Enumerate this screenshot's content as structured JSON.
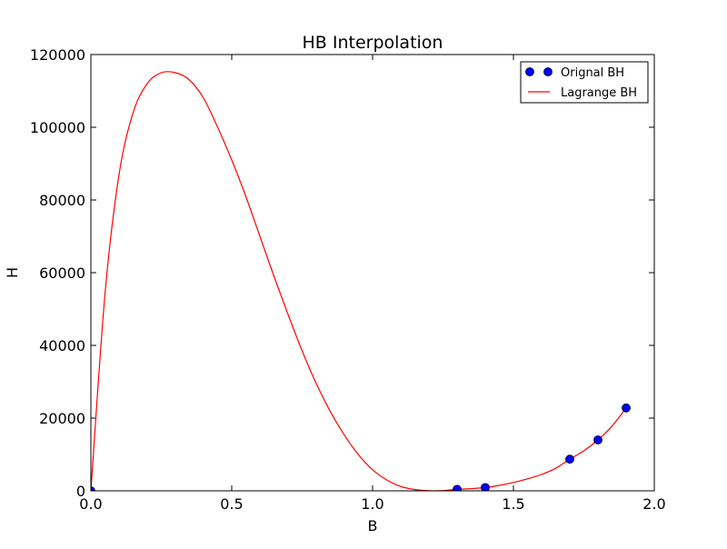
{
  "chart_data": {
    "type": "line",
    "title": "HB Interpolation",
    "xlabel": "B",
    "ylabel": "H",
    "xlim": [
      0.0,
      2.0
    ],
    "ylim": [
      0,
      120000
    ],
    "xticks": [
      0.0,
      0.5,
      1.0,
      1.5,
      2.0
    ],
    "xtick_labels": [
      "0.0",
      "0.5",
      "1.0",
      "1.5",
      "2.0"
    ],
    "yticks": [
      0,
      20000,
      40000,
      60000,
      80000,
      100000,
      120000
    ],
    "ytick_labels": [
      "0",
      "20000",
      "40000",
      "60000",
      "80000",
      "100000",
      "120000"
    ],
    "grid": false,
    "legend_position": "top-right",
    "series": [
      {
        "name": "Orignal BH",
        "kind": "scatter",
        "color": "#0000ff",
        "x": [
          0.0,
          1.3,
          1.4,
          1.7,
          1.8,
          1.9
        ],
        "y": [
          0,
          400,
          900,
          8700,
          14000,
          22800
        ]
      },
      {
        "name": "Lagrange BH",
        "kind": "line",
        "color": "#ff0000",
        "x": [
          0.0,
          0.05,
          0.1,
          0.15,
          0.2,
          0.25,
          0.3,
          0.35,
          0.4,
          0.45,
          0.5,
          0.55,
          0.6,
          0.65,
          0.7,
          0.75,
          0.8,
          0.85,
          0.9,
          0.95,
          1.0,
          1.05,
          1.1,
          1.15,
          1.2,
          1.25,
          1.3,
          1.35,
          1.4,
          1.45,
          1.5,
          1.55,
          1.6,
          1.65,
          1.7,
          1.75,
          1.8,
          1.85,
          1.9
        ],
        "y": [
          0,
          54000,
          87000,
          104000,
          112000,
          115000,
          115000,
          113000,
          108000,
          100000,
          91000,
          81000,
          70000,
          59000,
          48500,
          38500,
          29500,
          21800,
          15300,
          9900,
          5800,
          3000,
          1200,
          350,
          50,
          60,
          400,
          600,
          900,
          1500,
          2300,
          3300,
          4500,
          6200,
          8700,
          11000,
          14000,
          17800,
          22800
        ]
      }
    ]
  }
}
